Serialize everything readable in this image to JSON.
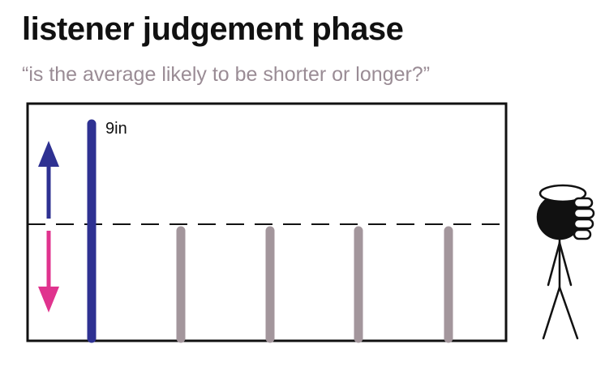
{
  "header": {
    "title": "listener judgement phase",
    "subtitle": "“is the average likely to be shorter or longer?”"
  },
  "diagram": {
    "highlighted_bar_label": "9in",
    "gray_bar_count": 4,
    "colors": {
      "frame": "#111111",
      "highlight_bar": "#2e3192",
      "gray_bar": "#a3969c",
      "arrow_up": "#2e3192",
      "arrow_down": "#e0338e",
      "subtitle": "#9a8c95",
      "figure": "#111111"
    },
    "icons": [
      "up-arrow-icon",
      "down-arrow-icon",
      "listener-figure-icon"
    ]
  }
}
